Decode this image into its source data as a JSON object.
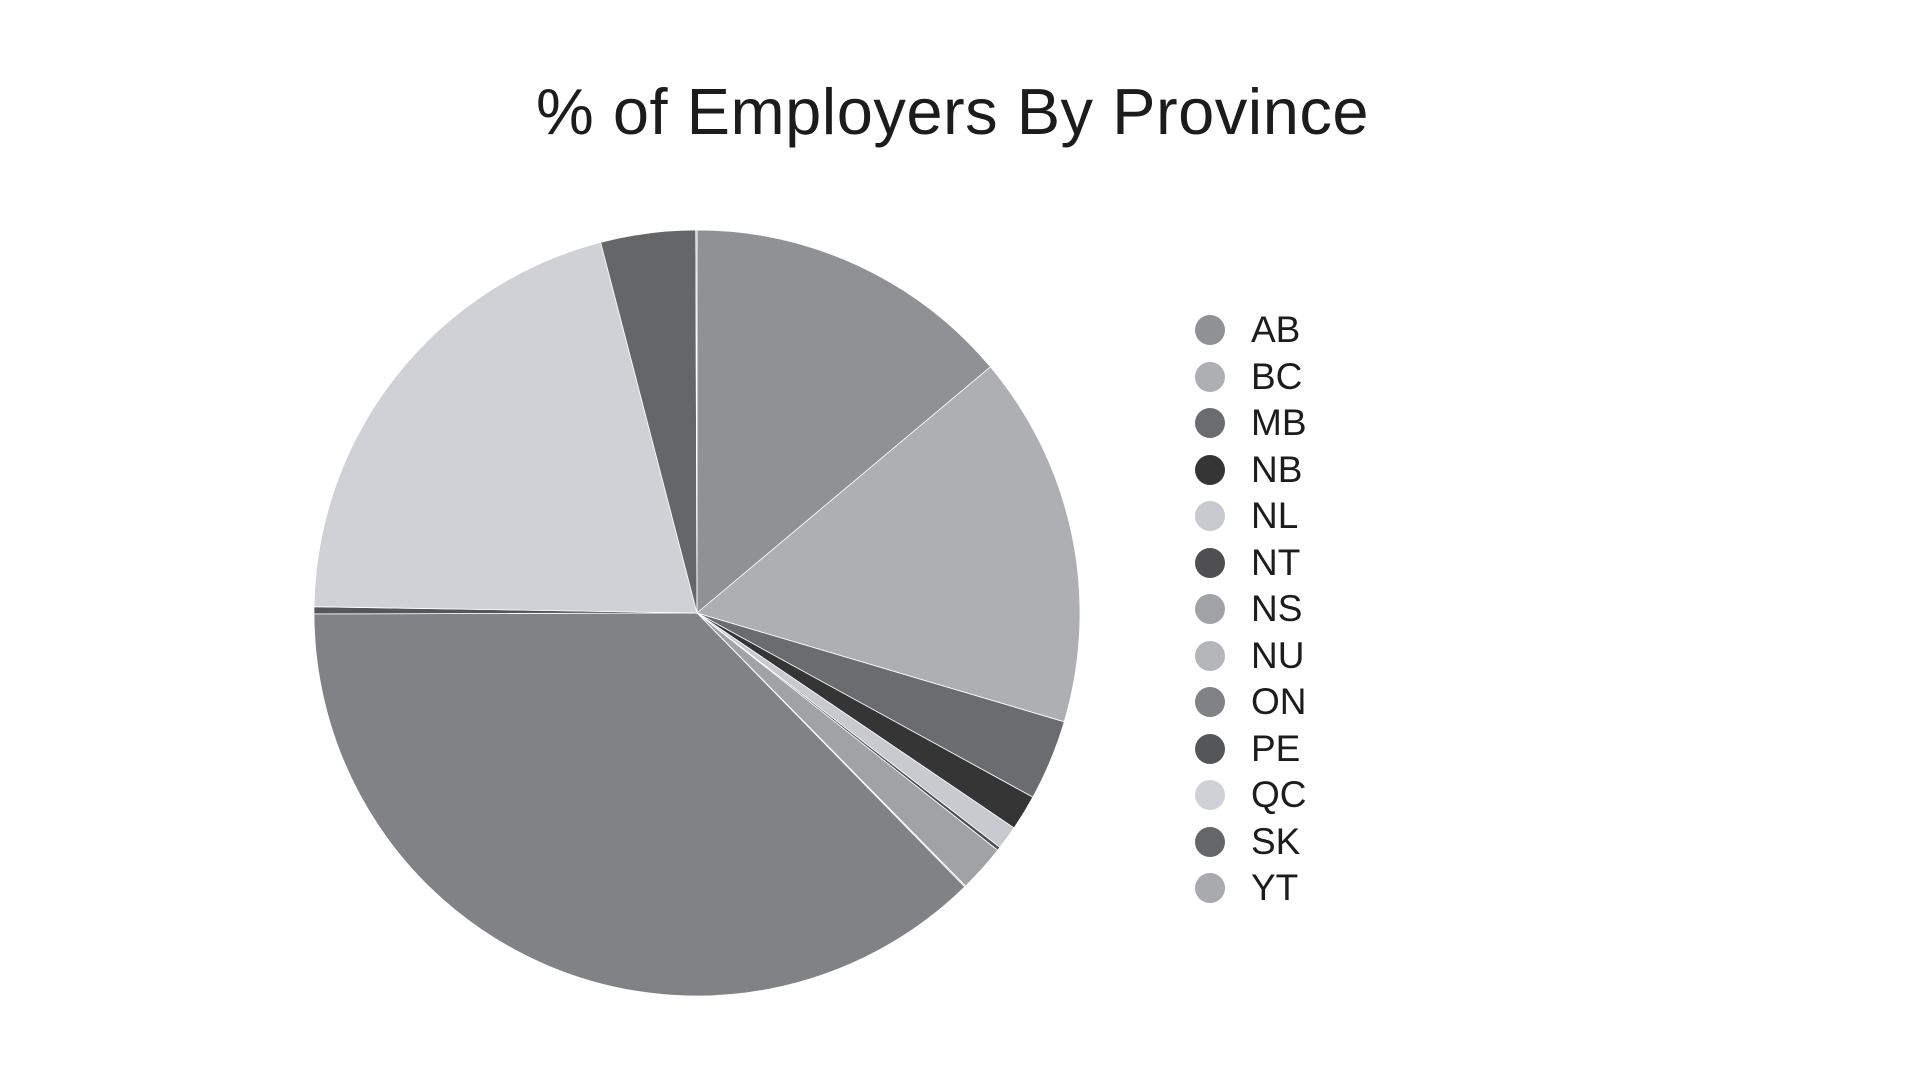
{
  "chart_data": {
    "type": "pie",
    "title": "% of Employers By Province",
    "start_angle_deg": 0,
    "direction": "clockwise",
    "legend_position": "right",
    "slices": [
      {
        "label": "AB",
        "value": 13.9,
        "color": "#8f9195"
      },
      {
        "label": "BC",
        "value": 15.7,
        "color": "#aeafb2"
      },
      {
        "label": "MB",
        "value": 3.4,
        "color": "#6b6c70"
      },
      {
        "label": "NB",
        "value": 1.5,
        "color": "#353535"
      },
      {
        "label": "NL",
        "value": 1.0,
        "color": "#c8cad0"
      },
      {
        "label": "NT",
        "value": 0.15,
        "color": "#4f4f51"
      },
      {
        "label": "NS",
        "value": 2.0,
        "color": "#a1a2a5"
      },
      {
        "label": "NU",
        "value": 0.05,
        "color": "#b5b6b9"
      },
      {
        "label": "ON",
        "value": 37.3,
        "color": "#818285"
      },
      {
        "label": "PE",
        "value": 0.3,
        "color": "#555658"
      },
      {
        "label": "QC",
        "value": 20.7,
        "color": "#cfd1d7"
      },
      {
        "label": "SK",
        "value": 4.0,
        "color": "#656668"
      },
      {
        "label": "YT",
        "value": 0.05,
        "color": "#a9aaad"
      }
    ]
  }
}
